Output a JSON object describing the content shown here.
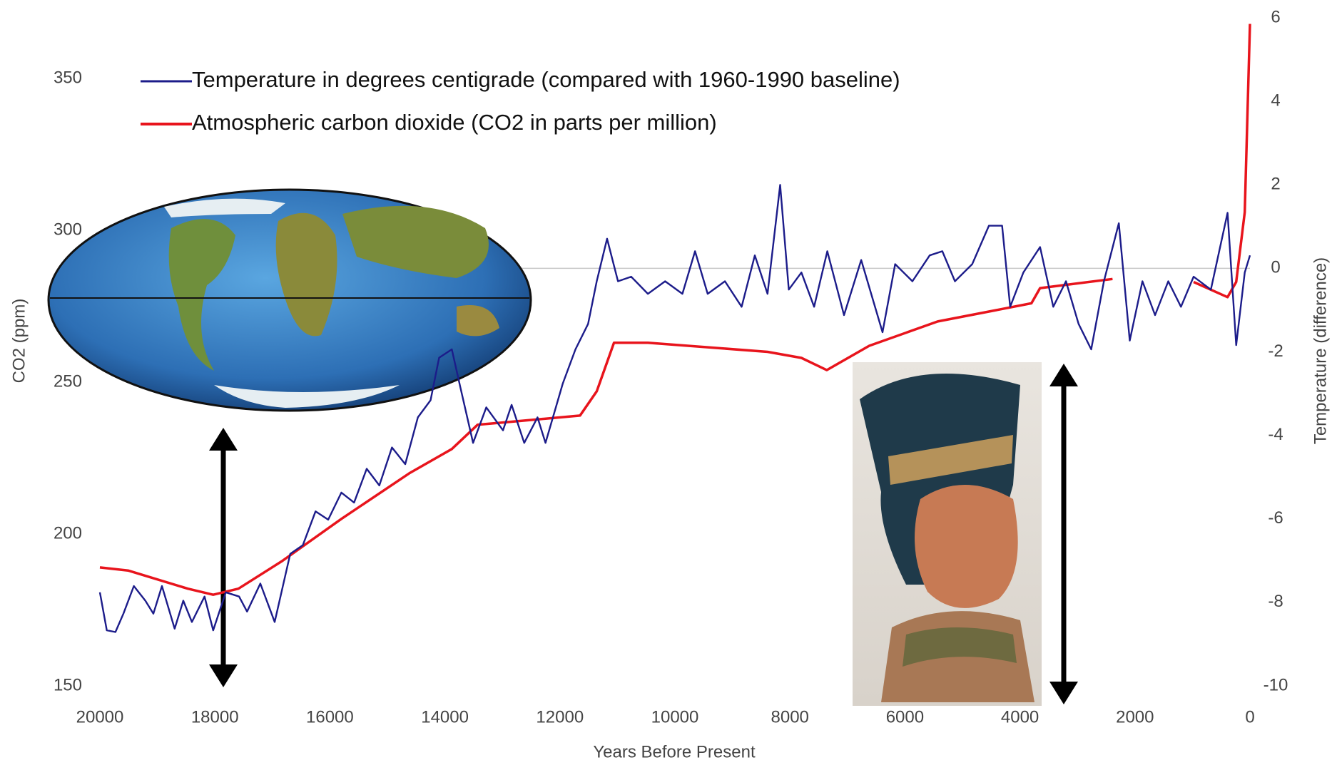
{
  "chart_data": {
    "type": "line",
    "x_label": "Years Before Present",
    "y_label": "CO2 (ppm)",
    "y2_label": "Temperature (difference)",
    "xlim": [
      20000,
      0
    ],
    "xticks": [
      20000,
      18000,
      16000,
      14000,
      12000,
      10000,
      8000,
      6000,
      4000,
      2000,
      0
    ],
    "ylim": [
      150,
      370
    ],
    "yticks": [
      150,
      200,
      250,
      300,
      350
    ],
    "y2lim": [
      -10,
      6
    ],
    "y2ticks": [
      -10,
      -8,
      -6,
      -4,
      -2,
      0,
      2,
      4,
      6
    ],
    "series": [
      {
        "name": "Temperature in degrees centigrade (compared with 1960-1990 baseline)",
        "color": "#1c1c8a",
        "axis": "y2",
        "x": [
          20000,
          19880,
          19730,
          19590,
          19410,
          19210,
          19070,
          18920,
          18700,
          18550,
          18400,
          18180,
          18030,
          17810,
          17580,
          17440,
          17210,
          16960,
          16690,
          16470,
          16250,
          16030,
          15800,
          15580,
          15360,
          15140,
          14920,
          14690,
          14470,
          14250,
          14100,
          13880,
          13730,
          13510,
          13280,
          12990,
          12840,
          12620,
          12390,
          12250,
          11950,
          11730,
          11510,
          11360,
          11180,
          10990,
          10760,
          10470,
          10170,
          9870,
          9650,
          9430,
          9130,
          8840,
          8610,
          8390,
          8170,
          8020,
          7800,
          7580,
          7350,
          7060,
          6760,
          6390,
          6170,
          5870,
          5570,
          5350,
          5130,
          4830,
          4540,
          4310,
          4170,
          3940,
          3650,
          3420,
          3200,
          2980,
          2760,
          2540,
          2280,
          2090,
          1870,
          1650,
          1420,
          1200,
          980,
          680,
          390,
          240,
          90,
          0
        ],
        "values": [
          -7.76,
          -8.67,
          -8.71,
          -8.27,
          -7.61,
          -7.96,
          -8.27,
          -7.61,
          -8.63,
          -7.96,
          -8.47,
          -7.86,
          -8.67,
          -7.76,
          -7.86,
          -8.22,
          -7.55,
          -8.47,
          -6.84,
          -6.63,
          -5.82,
          -6.02,
          -5.37,
          -5.61,
          -4.8,
          -5.2,
          -4.29,
          -4.69,
          -3.57,
          -3.16,
          -2.14,
          -1.94,
          -2.86,
          -4.18,
          -3.33,
          -3.88,
          -3.27,
          -4.18,
          -3.57,
          -4.18,
          -2.76,
          -1.94,
          -1.33,
          -0.31,
          0.71,
          -0.31,
          -0.2,
          -0.61,
          -0.31,
          -0.61,
          0.41,
          -0.61,
          -0.31,
          -0.92,
          0.31,
          -0.61,
          2.0,
          -0.51,
          -0.1,
          -0.92,
          0.41,
          -1.12,
          0.2,
          -1.53,
          0.1,
          -0.31,
          0.31,
          0.41,
          -0.31,
          0.1,
          1.02,
          1.02,
          -0.92,
          -0.1,
          0.51,
          -0.92,
          -0.31,
          -1.33,
          -1.94,
          -0.31,
          1.08,
          -1.73,
          -0.31,
          -1.12,
          -0.31,
          -0.92,
          -0.2,
          -0.51,
          1.33,
          -1.84,
          -0.1,
          0.31
        ]
      },
      {
        "name": "Atmospheric carbon dioxide (CO2 in parts per million)",
        "color": "#e8141c",
        "x": [
          20000,
          19510,
          18470,
          18030,
          17590,
          16840,
          15800,
          14620,
          13880,
          13430,
          12840,
          11650,
          11360,
          11060,
          10470,
          8390,
          7800,
          7360,
          6620,
          5430,
          3800,
          3650,
          2390,
          1700,
          980,
          390,
          240,
          90,
          0
        ],
        "values": [
          189,
          188,
          182,
          180,
          182,
          191,
          205,
          220,
          228,
          236,
          237,
          239,
          247,
          263,
          263,
          260,
          258,
          254,
          262,
          270,
          276,
          281,
          284,
          null,
          283,
          278,
          283,
          306,
          368
        ]
      }
    ]
  }
}
